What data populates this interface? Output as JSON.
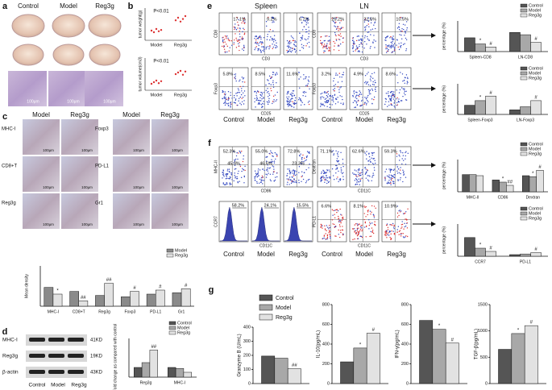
{
  "panel_a": {
    "label": "a",
    "groups": [
      "Control",
      "Model",
      "Reg3g"
    ],
    "scale_bar": "100μm"
  },
  "panel_b": {
    "label": "b",
    "plots": [
      {
        "ylabel": "tumor weight(g)",
        "p_value": "P<0.01",
        "categories": [
          "Model",
          "Reg3g"
        ],
        "ylim": [
          0,
          1
        ],
        "points": [
          [
            0.3,
            0.25,
            0.35,
            0.28,
            0.32
          ],
          [
            0.62,
            0.7,
            0.58,
            0.66,
            0.75
          ]
        ]
      },
      {
        "ylabel": "tumor volume(cm3)",
        "p_value": "P<0.01",
        "categories": [
          "Model",
          "Reg3g"
        ],
        "ylim": [
          0,
          1
        ],
        "points": [
          [
            0.2,
            0.25,
            0.3,
            0.22,
            0.28
          ],
          [
            0.5,
            0.55,
            0.6,
            0.48,
            0.58
          ]
        ]
      }
    ]
  },
  "panel_c": {
    "label": "c",
    "columns": [
      "Model",
      "Reg3g"
    ],
    "rows_left": [
      "MHC-I",
      "CD8+T",
      "Reg3g"
    ],
    "rows_right": [
      "Foxp3",
      "PD-L1",
      "Gr1"
    ],
    "scale_bar": "100μm",
    "chart": {
      "type": "bar",
      "ylabel": "Mean density",
      "legend": "top-right",
      "ylim": [
        0,
        1.5
      ],
      "categories": [
        "MHC-I",
        "CD8+T",
        "Reg3g",
        "Foxp3",
        "PD-L1",
        "Gr1"
      ],
      "series": [
        {
          "name": "Model",
          "color": "#8a8a8a",
          "values": [
            0.7,
            0.55,
            0.4,
            0.35,
            0.45,
            0.5
          ],
          "sig": [
            null,
            null,
            null,
            null,
            null,
            null
          ]
        },
        {
          "name": "Reg3g",
          "color": "#e2e2e2",
          "values": [
            0.45,
            0.2,
            0.85,
            0.55,
            0.6,
            0.65
          ],
          "sig": [
            "*",
            "##",
            "##",
            "#",
            "#",
            "#"
          ]
        }
      ]
    }
  },
  "panel_d": {
    "label": "d",
    "blot_rows": [
      "MHC-I",
      "Reg3g",
      "β-actin"
    ],
    "sizes": [
      "41KD",
      "19KD",
      "43KD"
    ],
    "lanes": [
      "Control",
      "Model",
      "Reg3g"
    ],
    "chart": {
      "type": "bar",
      "ylabel": "Fold change as compared with control",
      "legend": "top-right",
      "ylim": [
        0,
        4
      ],
      "categories": [
        "Reg3g",
        "MHC-I"
      ],
      "series": [
        {
          "name": "Control",
          "color": "#555555",
          "values": [
            1,
            1
          ],
          "sig": [
            null,
            null
          ]
        },
        {
          "name": "Model",
          "color": "#a8a8a8",
          "values": [
            1.5,
            0.9
          ],
          "sig": [
            null,
            null
          ]
        },
        {
          "name": "Reg3g",
          "color": "#e2e2e2",
          "values": [
            2.8,
            0.5
          ],
          "sig": [
            "##",
            null
          ]
        }
      ]
    }
  },
  "panel_e": {
    "label": "e",
    "tissues": [
      "Spleen",
      "LN"
    ],
    "groups": [
      "Control",
      "Model",
      "Reg3g"
    ],
    "row1_axes": {
      "y": "CD8",
      "x": "CD3"
    },
    "row2_axes": {
      "y": "Foxp3",
      "x": "CD25"
    },
    "row1": [
      [
        "17.1%",
        "9.2%",
        "6.7%"
      ],
      [
        "25.2%",
        "21.6%",
        "10.5%"
      ]
    ],
    "row2": [
      [
        "5.8%",
        "8.5%",
        "11.6%"
      ],
      [
        "3.2%",
        "4.9%",
        "8.6%"
      ]
    ],
    "charts": [
      {
        "type": "bar",
        "ylabel": "percentage (%)",
        "legend": "top-right",
        "ylim": [
          0,
          40
        ],
        "categories": [
          "Spleen-CD8",
          "LN-CD8"
        ],
        "series": [
          {
            "name": "Control",
            "color": "#555555",
            "values": [
              18,
              25
            ],
            "sig": [
              null,
              null
            ]
          },
          {
            "name": "Model",
            "color": "#a8a8a8",
            "values": [
              10,
              22
            ],
            "sig": [
              "*",
              null
            ]
          },
          {
            "name": "Reg3g",
            "color": "#e2e2e2",
            "values": [
              6,
              12
            ],
            "sig": [
              "#",
              "#"
            ]
          }
        ]
      },
      {
        "type": "bar",
        "ylabel": "percentage (%)",
        "legend": "top-right",
        "ylim": [
          0,
          20
        ],
        "categories": [
          "Spleen-Foxp3",
          "LN-Foxp3"
        ],
        "series": [
          {
            "name": "Control",
            "color": "#555555",
            "values": [
              6,
              3
            ],
            "sig": [
              null,
              null
            ]
          },
          {
            "name": "Model",
            "color": "#a8a8a8",
            "values": [
              9,
              5
            ],
            "sig": [
              "*",
              null
            ]
          },
          {
            "name": "Reg3g",
            "color": "#e2e2e2",
            "values": [
              12,
              9
            ],
            "sig": [
              "#",
              "#"
            ]
          }
        ]
      }
    ]
  },
  "panel_f": {
    "label": "f",
    "groups": [
      "Control",
      "Model",
      "Reg3g"
    ],
    "row1_left_axes": {
      "y": "MHC-II",
      "x": "CD86"
    },
    "row1_right_axes": {
      "y": "Dextran",
      "x": "CD11C"
    },
    "row2_left_axes": {
      "y": "CCR7",
      "x": "CD11C"
    },
    "row2_right_axes": {
      "y": "PD-L1",
      "x": "CD11C"
    },
    "row1_left": [
      [
        "52.3%",
        "45.9%"
      ],
      [
        "55.0%",
        "46.6%"
      ],
      [
        "72.8%",
        "23.3%"
      ]
    ],
    "row1_right": [
      "71.1%",
      "62.6%",
      "59.3%"
    ],
    "row2_left": [
      "58.2%",
      "24.1%",
      "15.5%"
    ],
    "row2_right": [
      "6.6%",
      "8.1%",
      "10.9%"
    ],
    "charts": [
      {
        "type": "bar",
        "ylabel": "percentage (%)",
        "legend": "top-right",
        "ylim": [
          0,
          150
        ],
        "categories": [
          "MHC-II",
          "CD86",
          "Dextran"
        ],
        "series": [
          {
            "name": "Control",
            "color": "#555555",
            "values": [
              80,
              55,
              75
            ],
            "sig": [
              null,
              null,
              null
            ]
          },
          {
            "name": "Model",
            "color": "#a8a8a8",
            "values": [
              80,
              45,
              70
            ],
            "sig": [
              null,
              "*",
              "*"
            ]
          },
          {
            "name": "Reg3g",
            "color": "#e2e2e2",
            "values": [
              75,
              30,
              100
            ],
            "sig": [
              null,
              "##",
              "#"
            ]
          }
        ]
      },
      {
        "type": "bar",
        "ylabel": "percentage (%)",
        "legend": "top-right",
        "ylim": [
          0,
          100
        ],
        "categories": [
          "CCR7",
          "PD-L1"
        ],
        "series": [
          {
            "name": "Control",
            "color": "#555555",
            "values": [
              58,
              5
            ],
            "sig": [
              null,
              null
            ]
          },
          {
            "name": "Model",
            "color": "#a8a8a8",
            "values": [
              25,
              7
            ],
            "sig": [
              "*",
              null
            ]
          },
          {
            "name": "Reg3g",
            "color": "#e2e2e2",
            "values": [
              15,
              11
            ],
            "sig": [
              "#",
              "#"
            ]
          }
        ]
      }
    ]
  },
  "panel_g": {
    "label": "g",
    "legend": [
      "Control",
      "Model",
      "Reg3g"
    ],
    "colors": [
      "#555555",
      "#a8a8a8",
      "#e2e2e2"
    ],
    "charts": [
      {
        "ylabel": "Granzyme B (U/mL)",
        "ylim": [
          0,
          400
        ],
        "yticks": [
          0,
          100,
          200,
          300,
          400
        ],
        "values": [
          195,
          180,
          105
        ],
        "sig": [
          null,
          null,
          "##"
        ]
      },
      {
        "ylabel": "IL-10(pg/mL)",
        "ylim": [
          0,
          800
        ],
        "yticks": [
          0,
          200,
          400,
          600,
          800
        ],
        "values": [
          220,
          360,
          510
        ],
        "sig": [
          null,
          "*",
          "#"
        ]
      },
      {
        "ylabel": "IFN-γ(pg/mL)",
        "ylim": [
          0,
          800
        ],
        "yticks": [
          0,
          200,
          400,
          600,
          800
        ],
        "values": [
          640,
          550,
          410
        ],
        "sig": [
          null,
          "*",
          "#"
        ]
      },
      {
        "ylabel": "TGF-β(pg/mL)",
        "ylim": [
          0,
          1500
        ],
        "yticks": [
          0,
          500,
          1000,
          1500
        ],
        "values": [
          650,
          950,
          1100
        ],
        "sig": [
          null,
          "*",
          "#"
        ]
      }
    ]
  }
}
